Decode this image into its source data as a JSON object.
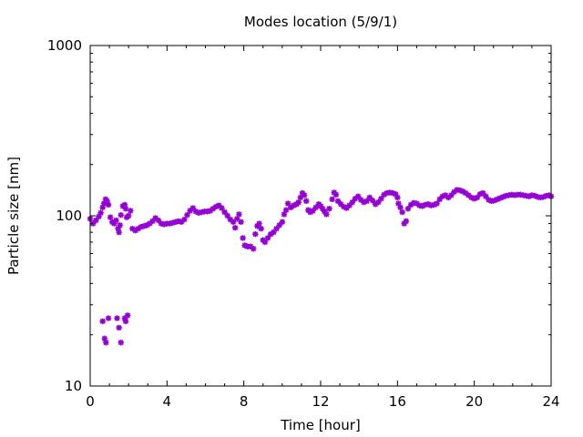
{
  "chart_data": {
    "type": "scatter",
    "title": "Modes location (5/9/1)",
    "xlabel": "Time [hour]",
    "ylabel": "Particle size [nm]",
    "xlim": [
      0,
      24
    ],
    "ylim": [
      10,
      1000
    ],
    "yscale": "log",
    "grid": false,
    "legend": "none",
    "x_ticks": [
      0,
      4,
      8,
      12,
      16,
      20,
      24
    ],
    "x_tick_labels": [
      "0",
      "4",
      "8",
      "12",
      "16",
      "20",
      "24"
    ],
    "y_ticks": [
      10,
      100,
      1000
    ],
    "y_tick_labels": [
      "10",
      "100",
      "1000"
    ],
    "marker_color": "#9400d3",
    "series": [
      {
        "points": [
          [
            0.0,
            96
          ],
          [
            0.15,
            90
          ],
          [
            0.3,
            94
          ],
          [
            0.45,
            99
          ],
          [
            0.55,
            104
          ],
          [
            0.65,
            112
          ],
          [
            0.72,
            118
          ],
          [
            0.8,
            125
          ],
          [
            0.88,
            122
          ],
          [
            0.95,
            116
          ],
          [
            1.05,
            98
          ],
          [
            1.15,
            92
          ],
          [
            1.25,
            90
          ],
          [
            1.35,
            94
          ],
          [
            1.45,
            84
          ],
          [
            1.5,
            80
          ],
          [
            1.55,
            88
          ],
          [
            1.6,
            101
          ],
          [
            1.7,
            114
          ],
          [
            1.8,
            116
          ],
          [
            1.85,
            110
          ],
          [
            1.9,
            98
          ],
          [
            2.0,
            100
          ],
          [
            2.1,
            107
          ],
          [
            2.2,
            84
          ],
          [
            2.35,
            82
          ],
          [
            2.5,
            84
          ],
          [
            2.65,
            86
          ],
          [
            2.8,
            87
          ],
          [
            2.95,
            88
          ],
          [
            3.1,
            90
          ],
          [
            3.25,
            93
          ],
          [
            3.4,
            97
          ],
          [
            3.55,
            94
          ],
          [
            3.7,
            90
          ],
          [
            3.85,
            89
          ],
          [
            4.0,
            90
          ],
          [
            4.15,
            90
          ],
          [
            4.3,
            91
          ],
          [
            4.45,
            92
          ],
          [
            4.6,
            93
          ],
          [
            4.75,
            92
          ],
          [
            4.9,
            95
          ],
          [
            5.05,
            101
          ],
          [
            5.2,
            107
          ],
          [
            5.35,
            111
          ],
          [
            5.5,
            106
          ],
          [
            5.65,
            104
          ],
          [
            5.8,
            105
          ],
          [
            5.95,
            106
          ],
          [
            6.1,
            106
          ],
          [
            6.25,
            107
          ],
          [
            6.4,
            110
          ],
          [
            6.55,
            113
          ],
          [
            6.7,
            115
          ],
          [
            6.85,
            111
          ],
          [
            7.0,
            105
          ],
          [
            7.15,
            100
          ],
          [
            7.3,
            95
          ],
          [
            7.45,
            92
          ],
          [
            7.55,
            85
          ],
          [
            7.65,
            96
          ],
          [
            7.75,
            102
          ],
          [
            7.85,
            92
          ],
          [
            7.95,
            74
          ],
          [
            8.05,
            67
          ],
          [
            8.2,
            66
          ],
          [
            8.35,
            66
          ],
          [
            8.5,
            64
          ],
          [
            8.6,
            78
          ],
          [
            8.7,
            87
          ],
          [
            8.8,
            90
          ],
          [
            8.9,
            84
          ],
          [
            9.0,
            72
          ],
          [
            9.1,
            70
          ],
          [
            9.25,
            74
          ],
          [
            9.4,
            78
          ],
          [
            9.55,
            80
          ],
          [
            9.7,
            84
          ],
          [
            9.85,
            88
          ],
          [
            10.0,
            92
          ],
          [
            10.1,
            102
          ],
          [
            10.2,
            108
          ],
          [
            10.3,
            118
          ],
          [
            10.45,
            112
          ],
          [
            10.6,
            115
          ],
          [
            10.75,
            117
          ],
          [
            10.85,
            120
          ],
          [
            10.95,
            128
          ],
          [
            11.05,
            136
          ],
          [
            11.15,
            132
          ],
          [
            11.25,
            122
          ],
          [
            11.35,
            108
          ],
          [
            11.45,
            105
          ],
          [
            11.6,
            107
          ],
          [
            11.75,
            112
          ],
          [
            11.9,
            117
          ],
          [
            12.0,
            114
          ],
          [
            12.1,
            110
          ],
          [
            12.2,
            106
          ],
          [
            12.3,
            102
          ],
          [
            12.45,
            110
          ],
          [
            12.6,
            125
          ],
          [
            12.7,
            137
          ],
          [
            12.8,
            133
          ],
          [
            12.9,
            122
          ],
          [
            13.05,
            117
          ],
          [
            13.2,
            113
          ],
          [
            13.35,
            111
          ],
          [
            13.5,
            115
          ],
          [
            13.65,
            120
          ],
          [
            13.8,
            126
          ],
          [
            13.95,
            130
          ],
          [
            14.1,
            124
          ],
          [
            14.25,
            120
          ],
          [
            14.4,
            122
          ],
          [
            14.55,
            128
          ],
          [
            14.7,
            123
          ],
          [
            14.85,
            117
          ],
          [
            15.0,
            120
          ],
          [
            15.15,
            126
          ],
          [
            15.3,
            133
          ],
          [
            15.45,
            136
          ],
          [
            15.6,
            137
          ],
          [
            15.75,
            136
          ],
          [
            15.9,
            134
          ],
          [
            16.0,
            128
          ],
          [
            16.05,
            118
          ],
          [
            16.15,
            112
          ],
          [
            16.25,
            105
          ],
          [
            16.35,
            90
          ],
          [
            16.45,
            93
          ],
          [
            16.55,
            110
          ],
          [
            16.7,
            116
          ],
          [
            16.85,
            119
          ],
          [
            17.0,
            118
          ],
          [
            17.15,
            115
          ],
          [
            17.3,
            114
          ],
          [
            17.45,
            116
          ],
          [
            17.6,
            117
          ],
          [
            17.75,
            115
          ],
          [
            17.9,
            116
          ],
          [
            18.05,
            118
          ],
          [
            18.2,
            125
          ],
          [
            18.35,
            130
          ],
          [
            18.5,
            132
          ],
          [
            18.65,
            128
          ],
          [
            18.8,
            132
          ],
          [
            18.95,
            138
          ],
          [
            19.1,
            142
          ],
          [
            19.25,
            141
          ],
          [
            19.4,
            139
          ],
          [
            19.55,
            136
          ],
          [
            19.7,
            132
          ],
          [
            19.85,
            128
          ],
          [
            20.0,
            126
          ],
          [
            20.15,
            128
          ],
          [
            20.3,
            134
          ],
          [
            20.45,
            136
          ],
          [
            20.6,
            130
          ],
          [
            20.75,
            124
          ],
          [
            20.9,
            122
          ],
          [
            21.05,
            123
          ],
          [
            21.2,
            125
          ],
          [
            21.35,
            127
          ],
          [
            21.5,
            129
          ],
          [
            21.65,
            131
          ],
          [
            21.8,
            132
          ],
          [
            21.95,
            133
          ],
          [
            22.1,
            132
          ],
          [
            22.25,
            133
          ],
          [
            22.4,
            133
          ],
          [
            22.55,
            132
          ],
          [
            22.7,
            131
          ],
          [
            22.85,
            130
          ],
          [
            23.0,
            132
          ],
          [
            23.15,
            131
          ],
          [
            23.3,
            129
          ],
          [
            23.45,
            128
          ],
          [
            23.6,
            129
          ],
          [
            23.75,
            131
          ],
          [
            23.9,
            132
          ],
          [
            24.0,
            130
          ],
          [
            0.65,
            24
          ],
          [
            0.75,
            19
          ],
          [
            0.82,
            18
          ],
          [
            0.95,
            25
          ],
          [
            1.4,
            25
          ],
          [
            1.5,
            22
          ],
          [
            1.6,
            18
          ],
          [
            1.8,
            25
          ],
          [
            1.85,
            24
          ],
          [
            1.95,
            26
          ]
        ]
      }
    ]
  }
}
